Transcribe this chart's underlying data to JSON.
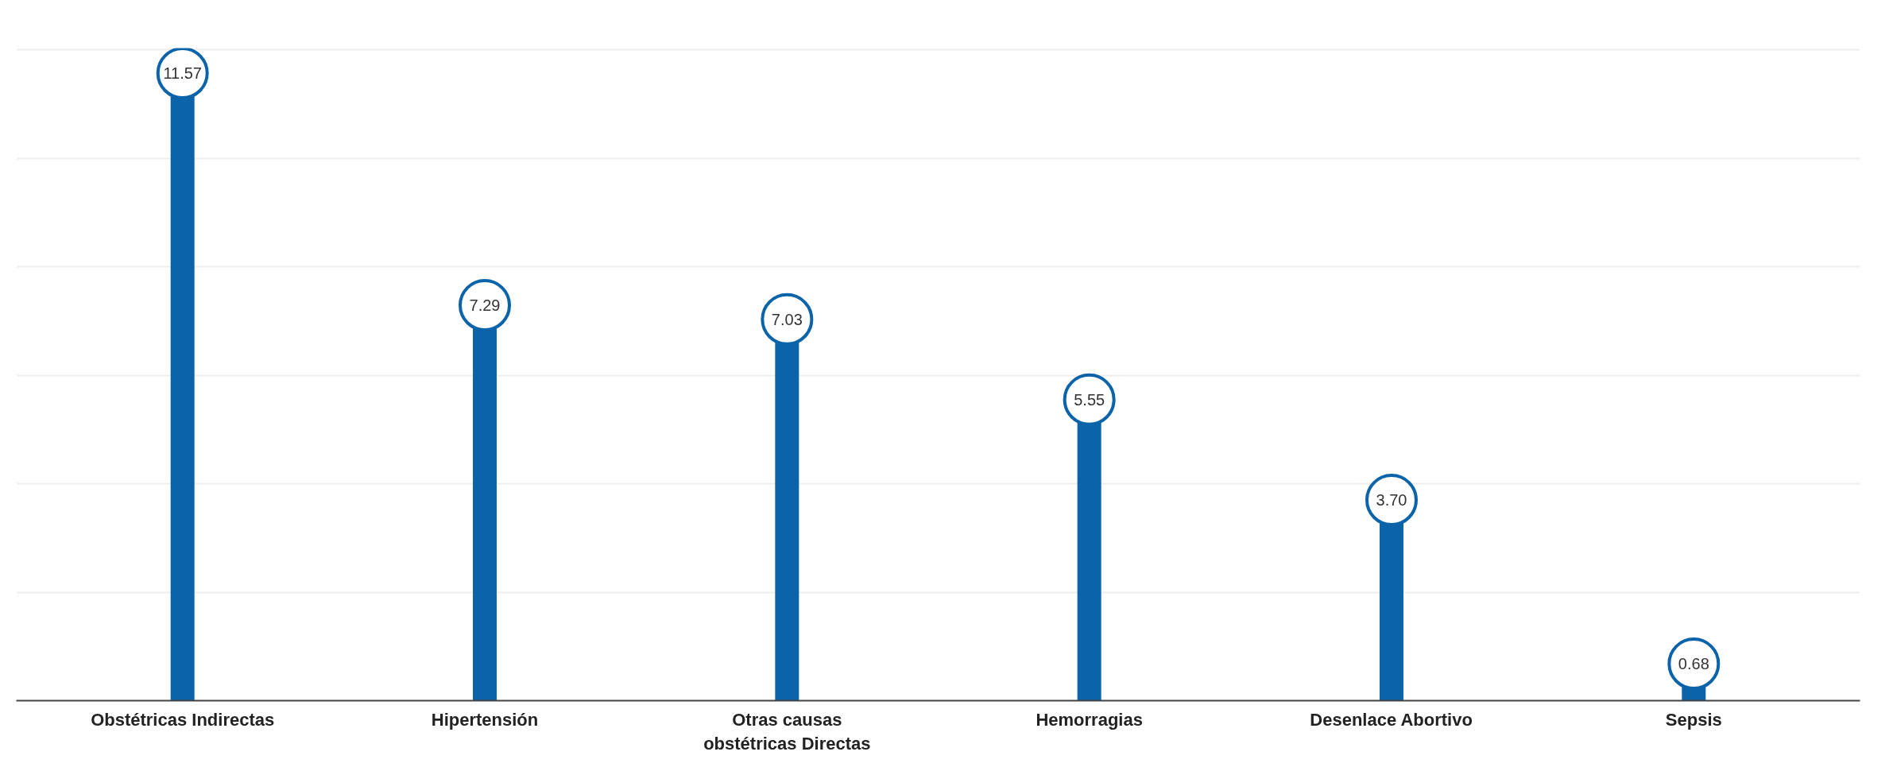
{
  "chart_data": {
    "type": "lollipop",
    "categories": [
      "Obstétricas Indirectas",
      "Hipertensión",
      "Otras causas obstétricas Directas",
      "Hemorragias",
      "Desenlace Abortivo",
      "Sepsis"
    ],
    "values": [
      11.57,
      7.29,
      7.03,
      5.55,
      3.7,
      0.68
    ],
    "value_labels": [
      "11.57",
      "7.29",
      "7.03",
      "5.55",
      "3.70",
      "0.68"
    ],
    "color": "#0b64a9",
    "grid": "y",
    "tick_labels": "x"
  }
}
